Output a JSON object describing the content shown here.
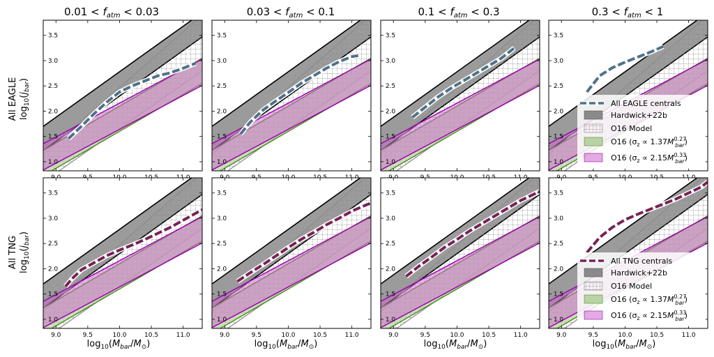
{
  "figure": {
    "column_titles": [
      "0.01 < f_atm < 0.03",
      "0.03 < f_atm < 0.1",
      "0.1 < f_atm < 0.3",
      "0.3 < f_atm < 1"
    ],
    "row_labels": [
      "All EAGLE",
      "All TNG"
    ],
    "ylabel": "log10(j_bar)",
    "xlabel": "log10(M_bar/M_sun)"
  },
  "colors": {
    "eagle": "#4e7288",
    "tng": "#772255",
    "hardwick_fill": "#8a8a8a",
    "o16_hatch": "#8c8c8c",
    "green_fill": "#b9d3a6",
    "green_edge": "#4b8a1e",
    "magenta_fill": "#cc66cc",
    "magenta_edge": "#9900aa"
  },
  "chart_data": {
    "type": "line",
    "layout": "2x4 grid of panels with shared axes",
    "xlim": [
      8.8,
      11.3
    ],
    "ylim": [
      0.82,
      3.8
    ],
    "xticks": [
      9.0,
      9.5,
      10.0,
      10.5,
      11.0
    ],
    "yticks": [
      1.0,
      1.5,
      2.0,
      2.5,
      3.0,
      3.5
    ],
    "bands": {
      "hardwick": {
        "label": "Hardwick+22b",
        "slope": 0.9,
        "lower_intercept": -6.7,
        "upper_intercept": -6.22
      },
      "o16": {
        "label": "O16 Model",
        "lower": [
          [
            8.8,
            0.6
          ],
          [
            11.3,
            2.8
          ]
        ],
        "upper": [
          [
            8.8,
            1.15
          ],
          [
            11.3,
            3.9
          ]
        ]
      },
      "green": {
        "label": "O16 (σz ∝ 1.37M_bar^0.27)",
        "slope": 0.73,
        "lower_intercept": -5.7,
        "upper_intercept": -5.2
      },
      "magenta": {
        "label": "O16 (σz ∝ 2.15M_bar^0.33)",
        "slope": 0.67,
        "lower_intercept": -5.06,
        "upper_intercept": -4.54
      }
    },
    "series": [
      {
        "name": "All EAGLE centrals",
        "row": 0,
        "col": 0,
        "x": [
          9.2,
          9.4,
          9.6,
          9.8,
          10.0,
          10.2,
          10.4,
          10.6,
          10.8,
          11.0,
          11.2
        ],
        "y": [
          1.46,
          1.7,
          1.95,
          2.18,
          2.38,
          2.5,
          2.6,
          2.7,
          2.76,
          2.85,
          2.95
        ]
      },
      {
        "name": "All EAGLE centrals",
        "row": 0,
        "col": 1,
        "x": [
          9.25,
          9.4,
          9.6,
          9.8,
          10.0,
          10.2,
          10.4,
          10.6,
          10.8,
          11.0,
          11.1
        ],
        "y": [
          1.55,
          1.78,
          2.02,
          2.2,
          2.37,
          2.55,
          2.7,
          2.85,
          2.98,
          3.08,
          3.1
        ]
      },
      {
        "name": "All EAGLE centrals",
        "row": 0,
        "col": 2,
        "x": [
          9.3,
          9.5,
          9.7,
          9.9,
          10.1,
          10.3,
          10.5,
          10.7,
          10.9
        ],
        "y": [
          1.88,
          2.08,
          2.28,
          2.45,
          2.6,
          2.75,
          2.9,
          3.05,
          3.25
        ]
      },
      {
        "name": "All EAGLE centrals",
        "row": 0,
        "col": 3,
        "x": [
          9.4,
          9.6,
          9.8,
          10.0,
          10.2,
          10.4,
          10.6
        ],
        "y": [
          2.38,
          2.7,
          2.86,
          2.97,
          3.07,
          3.17,
          3.28
        ]
      },
      {
        "name": "All TNG centrals",
        "row": 1,
        "col": 0,
        "x": [
          9.15,
          9.25,
          9.4,
          9.6,
          9.8,
          10.0,
          10.2,
          10.4,
          10.6,
          10.8,
          11.0,
          11.2,
          11.3
        ],
        "y": [
          1.65,
          1.8,
          1.98,
          2.12,
          2.26,
          2.37,
          2.47,
          2.58,
          2.7,
          2.82,
          2.96,
          3.1,
          3.17
        ]
      },
      {
        "name": "All TNG centrals",
        "row": 1,
        "col": 1,
        "x": [
          9.2,
          9.4,
          9.6,
          9.8,
          10.0,
          10.2,
          10.4,
          10.6,
          10.8,
          11.0,
          11.2,
          11.3
        ],
        "y": [
          1.75,
          1.92,
          2.08,
          2.25,
          2.42,
          2.58,
          2.72,
          2.87,
          3.0,
          3.14,
          3.25,
          3.3
        ]
      },
      {
        "name": "All TNG centrals",
        "row": 1,
        "col": 2,
        "x": [
          9.2,
          9.4,
          9.6,
          9.8,
          10.0,
          10.2,
          10.4,
          10.6,
          10.8,
          11.0,
          11.2,
          11.3
        ],
        "y": [
          1.85,
          2.05,
          2.23,
          2.42,
          2.58,
          2.75,
          2.9,
          3.05,
          3.2,
          3.35,
          3.47,
          3.53
        ]
      },
      {
        "name": "All TNG centrals",
        "row": 1,
        "col": 3,
        "x": [
          9.4,
          9.6,
          9.8,
          10.0,
          10.2,
          10.4,
          10.6,
          10.8,
          11.0,
          11.2,
          11.3
        ],
        "y": [
          2.32,
          2.62,
          2.82,
          2.97,
          3.08,
          3.18,
          3.28,
          3.38,
          3.5,
          3.62,
          3.72
        ]
      }
    ]
  },
  "legend": {
    "placement": "lower-right of last column panels",
    "top": {
      "sample_label": "All EAGLE centrals",
      "items": [
        "Hardwick+22b",
        "O16 Model",
        "O16 (σ",
        "O16 (σ"
      ]
    },
    "bottom": {
      "sample_label": "All TNG centrals",
      "items": [
        "Hardwick+22b",
        "O16 Model",
        "O16 (σ",
        "O16 (σ"
      ]
    }
  }
}
